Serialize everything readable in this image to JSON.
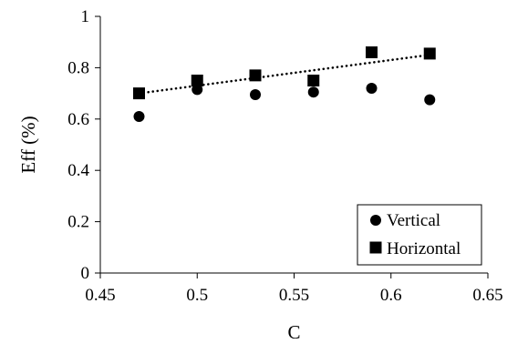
{
  "chart_data": {
    "type": "scatter",
    "title": "",
    "xlabel": "C",
    "ylabel": "Eff (%)",
    "xlim": [
      0.45,
      0.65
    ],
    "ylim": [
      0,
      1
    ],
    "xticks": [
      0.45,
      0.5,
      0.55,
      0.6,
      0.65
    ],
    "yticks": [
      0,
      0.2,
      0.4,
      0.6,
      0.8,
      1
    ],
    "xtick_labels": [
      "0.45",
      "0.5",
      "0.55",
      "0.6",
      "0.65"
    ],
    "ytick_labels": [
      "0",
      "0.2",
      "0.4",
      "0.6",
      "0.8",
      "1"
    ],
    "grid": false,
    "legend_position": "bottom-right",
    "series": [
      {
        "name": "Vertical",
        "marker": "circle",
        "color": "#000000",
        "x": [
          0.47,
          0.5,
          0.53,
          0.56,
          0.59,
          0.62
        ],
        "y": [
          0.61,
          0.715,
          0.695,
          0.705,
          0.72,
          0.675
        ]
      },
      {
        "name": "Horizontal",
        "marker": "square",
        "color": "#000000",
        "x": [
          0.47,
          0.5,
          0.53,
          0.56,
          0.59,
          0.62
        ],
        "y": [
          0.7,
          0.75,
          0.77,
          0.75,
          0.86,
          0.855
        ]
      }
    ],
    "trendline": {
      "series": "Horizontal",
      "style": "dotted",
      "type": "linear",
      "x": [
        0.47,
        0.62
      ],
      "y": [
        0.7,
        0.85
      ]
    }
  }
}
